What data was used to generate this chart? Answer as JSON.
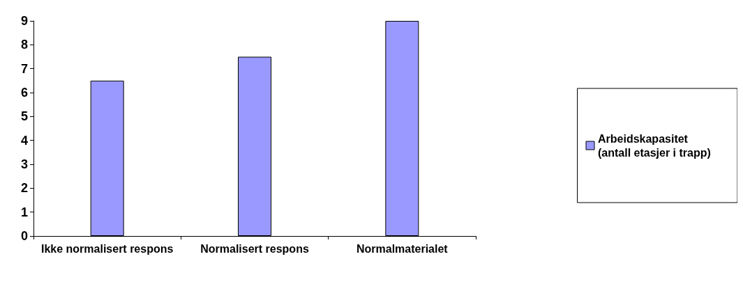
{
  "chart_data": {
    "type": "bar",
    "categories": [
      "Ikke normalisert respons",
      "Normalisert respons",
      "Normalmaterialet"
    ],
    "series": [
      {
        "name": "Arbeidskapasitet (antall etasjer i trapp)",
        "color": "#9999ff",
        "values": [
          6.5,
          7.5,
          9
        ]
      }
    ],
    "ylim": [
      0,
      9
    ],
    "yticks": [
      0,
      1,
      2,
      3,
      4,
      5,
      6,
      7,
      8,
      9
    ],
    "grid": false,
    "legend": "right"
  }
}
